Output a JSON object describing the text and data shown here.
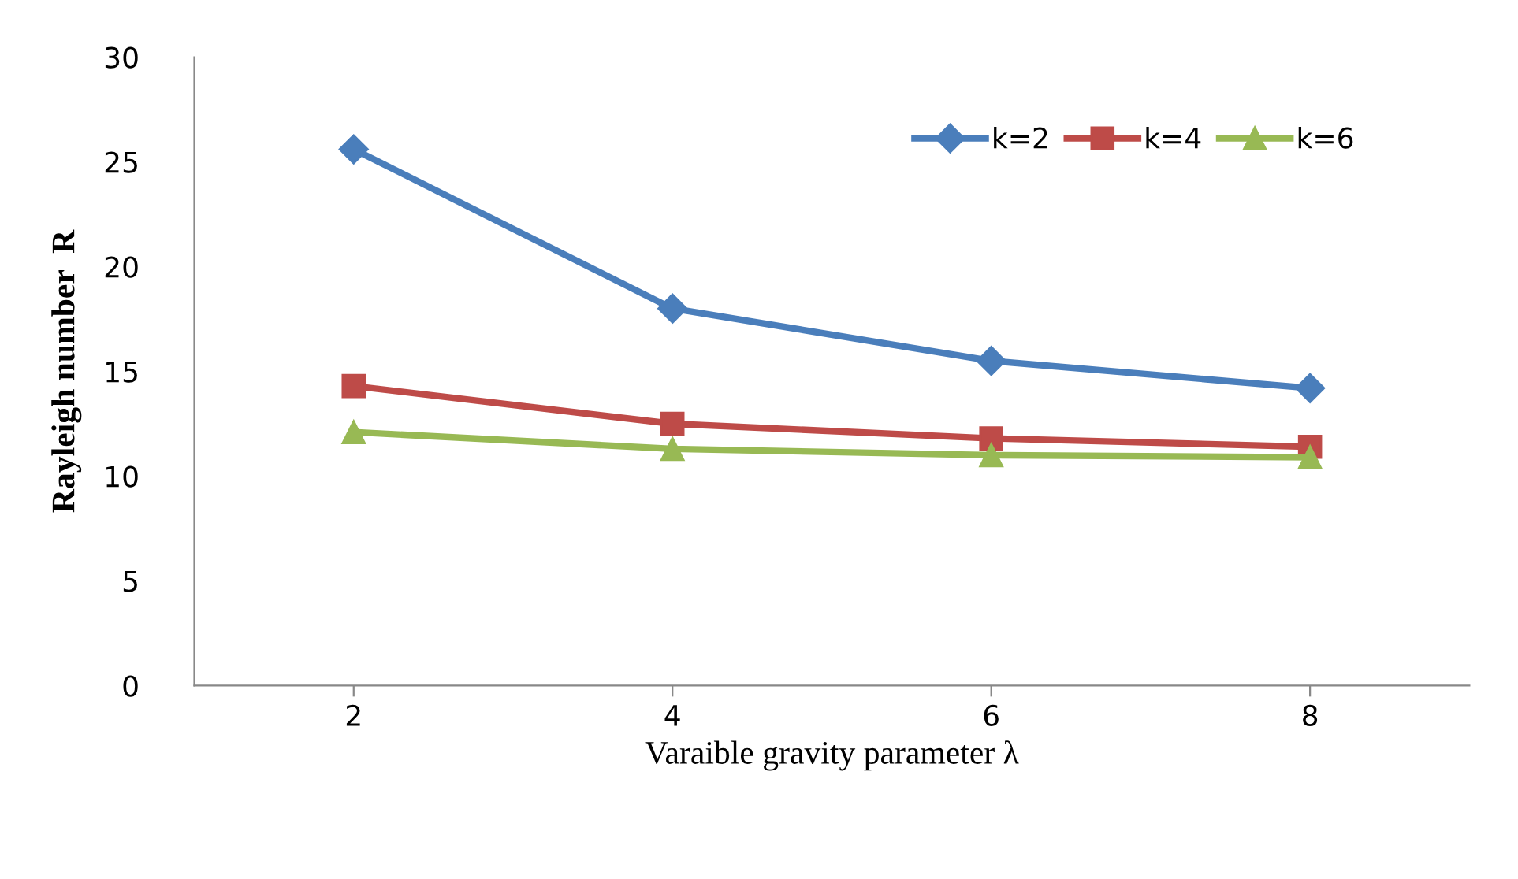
{
  "chart_data": {
    "type": "line",
    "xlabel": "Varaible gravity parameter λ",
    "ylabel": "Rayleigh number  R",
    "categories": [
      "2",
      "4",
      "6",
      "8"
    ],
    "series": [
      {
        "name": "k=2",
        "color": "#4a7ebb",
        "marker": "diamond",
        "values": [
          25.6,
          18.0,
          15.5,
          14.2
        ]
      },
      {
        "name": "k=4",
        "color": "#be4b48",
        "marker": "square",
        "values": [
          14.3,
          12.5,
          11.8,
          11.4
        ]
      },
      {
        "name": "k=6",
        "color": "#98b954",
        "marker": "triangle",
        "values": [
          12.1,
          11.3,
          11.0,
          10.9
        ]
      }
    ],
    "ylim": [
      0,
      30
    ],
    "yticks": [
      0,
      5,
      10,
      15,
      20,
      25,
      30
    ],
    "grid": false,
    "legend": "top right",
    "line_style": "solid"
  }
}
